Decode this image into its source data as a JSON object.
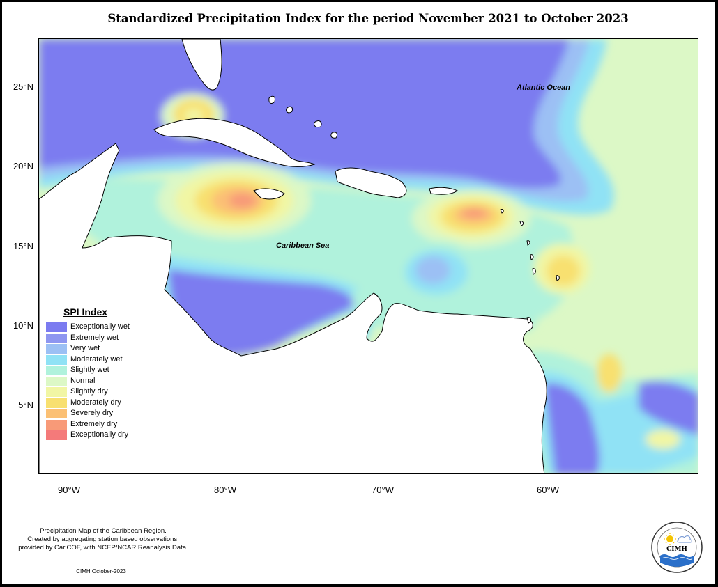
{
  "title": "Standardized Precipitation Index for the period November 2021 to October 2023",
  "map": {
    "ocean_labels": [
      "Atlantic Ocean",
      "Caribbean Sea"
    ],
    "latitude_ticks": [
      "25°N",
      "20°N",
      "15°N",
      "10°N",
      "5°N"
    ],
    "longitude_ticks": [
      "90°W",
      "80°W",
      "70°W",
      "60°W"
    ]
  },
  "legend": {
    "title": "SPI Index",
    "items": [
      {
        "label": "Exceptionally wet",
        "color": "#7b7bf0"
      },
      {
        "label": "Extremely wet",
        "color": "#8e96f0"
      },
      {
        "label": "Very wet",
        "color": "#9cc0f4"
      },
      {
        "label": "Moderately wet",
        "color": "#90e2f5"
      },
      {
        "label": "Slightly wet",
        "color": "#b0f2dc"
      },
      {
        "label": "Normal",
        "color": "#dcf8c6"
      },
      {
        "label": "Slightly dry",
        "color": "#f1f6a4"
      },
      {
        "label": "Moderately dry",
        "color": "#f8e070"
      },
      {
        "label": "Severely dry",
        "color": "#fbc074"
      },
      {
        "label": "Extremely dry",
        "color": "#f89a78"
      },
      {
        "label": "Exceptionally dry",
        "color": "#f47a7a"
      }
    ]
  },
  "credit": {
    "line1": "Precipitation Map of the Caribbean Region.",
    "line2": "Created by aggregating station based observations,",
    "line3": "provided by CariCOF, with NCEP/NCAR Reanalysis Data.",
    "date": "CIMH October-2023"
  },
  "logo": {
    "text": "CIMH",
    "icon": "cimh-logo-icon"
  }
}
